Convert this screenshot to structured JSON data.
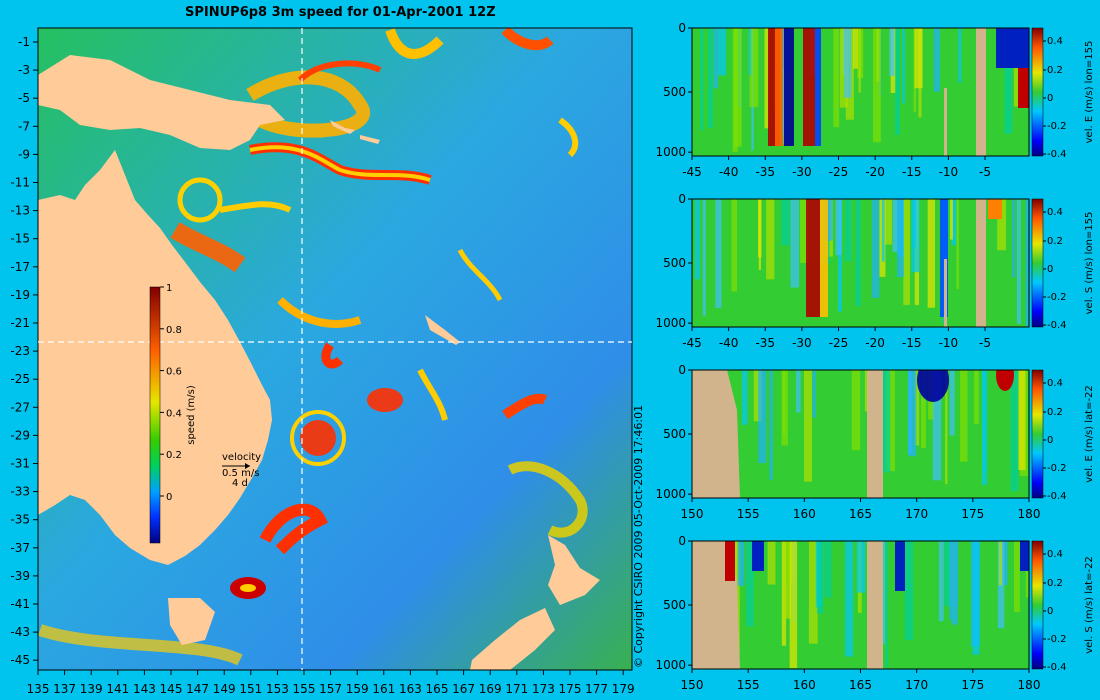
{
  "title": "SPINUP6p8 3m speed for 01-Apr-2001 12Z",
  "copyright": "© Copyright CSIRO 2009   05-Oct-2009 17:46:01",
  "map": {
    "lon_ticks": [
      "135",
      "137",
      "139",
      "141",
      "143",
      "145",
      "147",
      "149",
      "151",
      "153",
      "155",
      "157",
      "159",
      "161",
      "163",
      "165",
      "167",
      "169",
      "171",
      "173",
      "175",
      "177",
      "179"
    ],
    "lat_ticks": [
      "-1",
      "-3",
      "-5",
      "-7",
      "-9",
      "-11",
      "-13",
      "-15",
      "-17",
      "-19",
      "-21",
      "-23",
      "-25",
      "-27",
      "-29",
      "-31",
      "-33",
      "-35",
      "-37",
      "-39",
      "-41",
      "-43",
      "-45"
    ],
    "colorbar": {
      "label": "speed (m/s)",
      "ticks": [
        "1",
        "0.8",
        "0.6",
        "0.4",
        "0.2",
        "0"
      ]
    },
    "velocity_legend": {
      "title": "velocity",
      "speed": "0.5 m/s",
      "duration": "4 d"
    }
  },
  "sections": [
    {
      "label": "vel. E (m/s) lon=155",
      "x_ticks": [
        "-45",
        "-40",
        "-35",
        "-30",
        "-25",
        "-20",
        "-15",
        "-10",
        "-5"
      ],
      "y_ticks": [
        "0",
        "500",
        "1000"
      ],
      "cb_ticks": [
        "0.4",
        "0.2",
        "0",
        "-0.2",
        "-0.4"
      ]
    },
    {
      "label": "vel. S (m/s) lon=155",
      "x_ticks": [
        "-45",
        "-40",
        "-35",
        "-30",
        "-25",
        "-20",
        "-15",
        "-10",
        "-5"
      ],
      "y_ticks": [
        "0",
        "500",
        "1000"
      ],
      "cb_ticks": [
        "0.4",
        "0.2",
        "0",
        "-0.2",
        "-0.4"
      ]
    },
    {
      "label": "vel. E (m/s) lat=-22",
      "x_ticks": [
        "150",
        "155",
        "160",
        "165",
        "170",
        "175",
        "180"
      ],
      "y_ticks": [
        "0",
        "500",
        "1000"
      ],
      "cb_ticks": [
        "0.4",
        "0.2",
        "0",
        "-0.2",
        "-0.4"
      ]
    },
    {
      "label": "vel. S (m/s) lat=-22",
      "x_ticks": [
        "150",
        "155",
        "160",
        "165",
        "170",
        "175",
        "180"
      ],
      "y_ticks": [
        "0",
        "500",
        "1000"
      ],
      "cb_ticks": [
        "0.4",
        "0.2",
        "0",
        "-0.2",
        "-0.4"
      ]
    }
  ]
}
